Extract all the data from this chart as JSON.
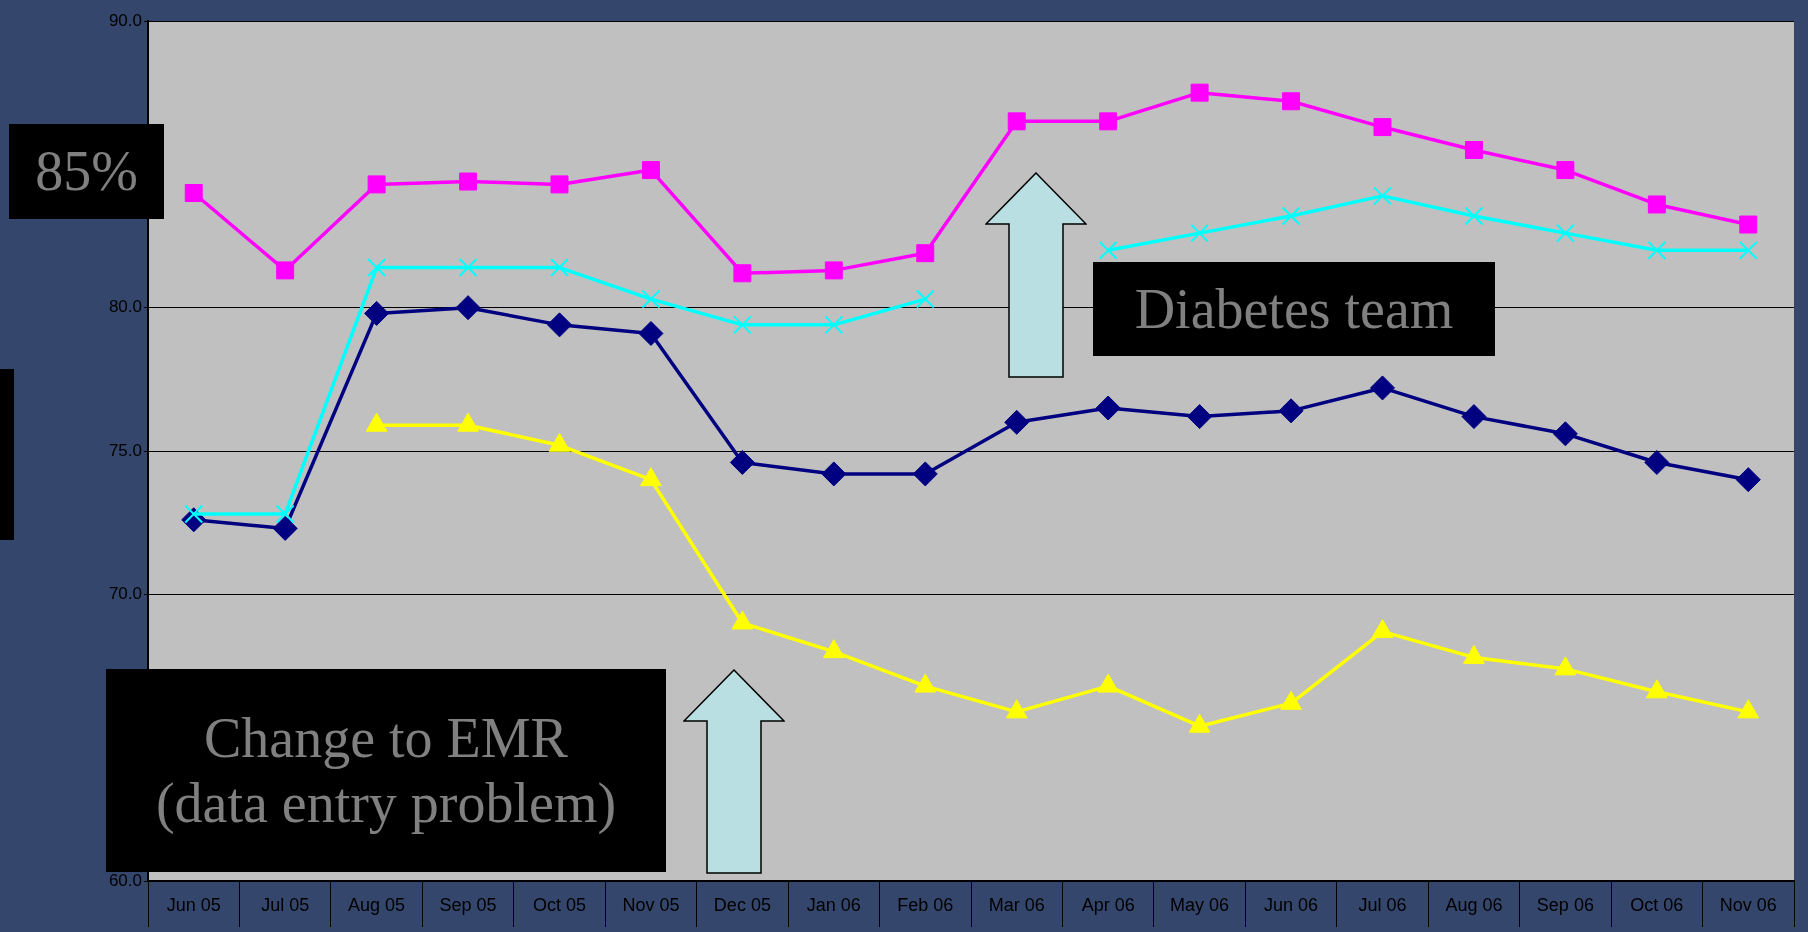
{
  "chart_data": {
    "type": "line",
    "categories": [
      "Jun 05",
      "Jul 05",
      "Aug 05",
      "Sep 05",
      "Oct 05",
      "Nov 05",
      "Dec 05",
      "Jan 06",
      "Feb 06",
      "Mar 06",
      "Apr 06",
      "May 06",
      "Jun 06",
      "Jul 06",
      "Aug 06",
      "Sep 06",
      "Oct 06",
      "Nov 06"
    ],
    "series": [
      {
        "color": "#ff00ff",
        "marker": "square",
        "values": [
          84.0,
          81.3,
          84.3,
          84.4,
          84.3,
          84.8,
          81.2,
          81.3,
          81.9,
          86.5,
          86.5,
          87.5,
          87.2,
          86.3,
          85.5,
          84.8,
          83.6,
          82.9
        ]
      },
      {
        "color": "#00ffff",
        "marker": "cross",
        "values": [
          72.8,
          72.8,
          81.4,
          81.4,
          81.4,
          80.3,
          79.4,
          79.4,
          80.3,
          null,
          82.0,
          82.6,
          83.2,
          83.9,
          83.2,
          82.6,
          82.0,
          82.0
        ]
      },
      {
        "color": "#000080",
        "marker": "diamond",
        "values": [
          72.6,
          72.3,
          79.8,
          80.0,
          79.4,
          79.1,
          74.6,
          74.2,
          74.2,
          76.0,
          76.5,
          76.2,
          76.4,
          77.2,
          76.2,
          75.6,
          74.6,
          74.0
        ]
      },
      {
        "color": "#ffff00",
        "marker": "triangle",
        "values": [
          null,
          null,
          75.9,
          75.9,
          75.2,
          74.0,
          69.0,
          68.0,
          66.8,
          65.9,
          66.8,
          65.4,
          66.2,
          68.7,
          67.8,
          67.4,
          66.6,
          65.9
        ]
      }
    ],
    "ylim": [
      60,
      90
    ],
    "yticks": [
      {
        "value": 60,
        "label": "60.0"
      },
      {
        "value": 70,
        "label": "70.0"
      },
      {
        "value": 75,
        "label": "75.0"
      },
      {
        "value": 80,
        "label": "80.0"
      },
      {
        "value": 90,
        "label": "90.0"
      }
    ],
    "grid": "y",
    "legend": false,
    "annotations": [
      "85%",
      "Diabetes team",
      "Change to EMR\n(data entry problem)"
    ]
  }
}
